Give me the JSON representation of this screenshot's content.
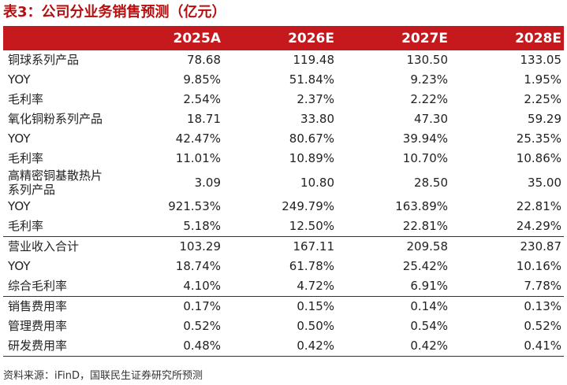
{
  "title": "表3：公司分业务销售预测（亿元）",
  "header": [
    "",
    "2025A",
    "2026E",
    "2027E",
    "2028E"
  ],
  "rows": [
    {
      "label": "铜球系列产品",
      "values": [
        "78.68",
        "119.48",
        "130.50",
        "133.05"
      ]
    },
    {
      "label": "YOY",
      "values": [
        "9.85%",
        "51.84%",
        "9.23%",
        "1.95%"
      ]
    },
    {
      "label": "毛利率",
      "values": [
        "2.54%",
        "2.37%",
        "2.22%",
        "2.25%"
      ]
    },
    {
      "label": "氧化铜粉系列产品",
      "values": [
        "18.71",
        "33.80",
        "47.30",
        "59.29"
      ]
    },
    {
      "label": "YOY",
      "values": [
        "42.47%",
        "80.67%",
        "39.94%",
        "25.35%"
      ]
    },
    {
      "label": "毛利率",
      "values": [
        "11.01%",
        "10.89%",
        "10.70%",
        "10.86%"
      ]
    },
    {
      "label": "高精密铜基散热片系列产品",
      "values": [
        "3.09",
        "10.80",
        "28.50",
        "35.00"
      ]
    },
    {
      "label": "YOY",
      "values": [
        "921.53%",
        "249.79%",
        "163.89%",
        "22.81%"
      ]
    },
    {
      "label": "毛利率",
      "values": [
        "5.18%",
        "12.50%",
        "22.81%",
        "24.29%"
      ]
    },
    {
      "label": "营业收入合计",
      "values": [
        "103.29",
        "167.11",
        "209.58",
        "230.87"
      ]
    },
    {
      "label": "YOY",
      "values": [
        "18.74%",
        "61.78%",
        "25.42%",
        "10.16%"
      ]
    },
    {
      "label": "综合毛利率",
      "values": [
        "4.10%",
        "4.72%",
        "6.91%",
        "7.78%"
      ]
    },
    {
      "label": "销售费用率",
      "values": [
        "0.17%",
        "0.15%",
        "0.14%",
        "0.13%"
      ]
    },
    {
      "label": "管理费用率",
      "values": [
        "0.52%",
        "0.50%",
        "0.54%",
        "0.52%"
      ]
    },
    {
      "label": "研发费用率",
      "values": [
        "0.48%",
        "0.42%",
        "0.42%",
        "0.41%"
      ]
    }
  ],
  "source": "资料来源：iFinD，国联民生证券研究所预测",
  "colors": {
    "header_bg": "#c5191d",
    "title": "#b50f0f",
    "header_text": "#ffffff"
  }
}
